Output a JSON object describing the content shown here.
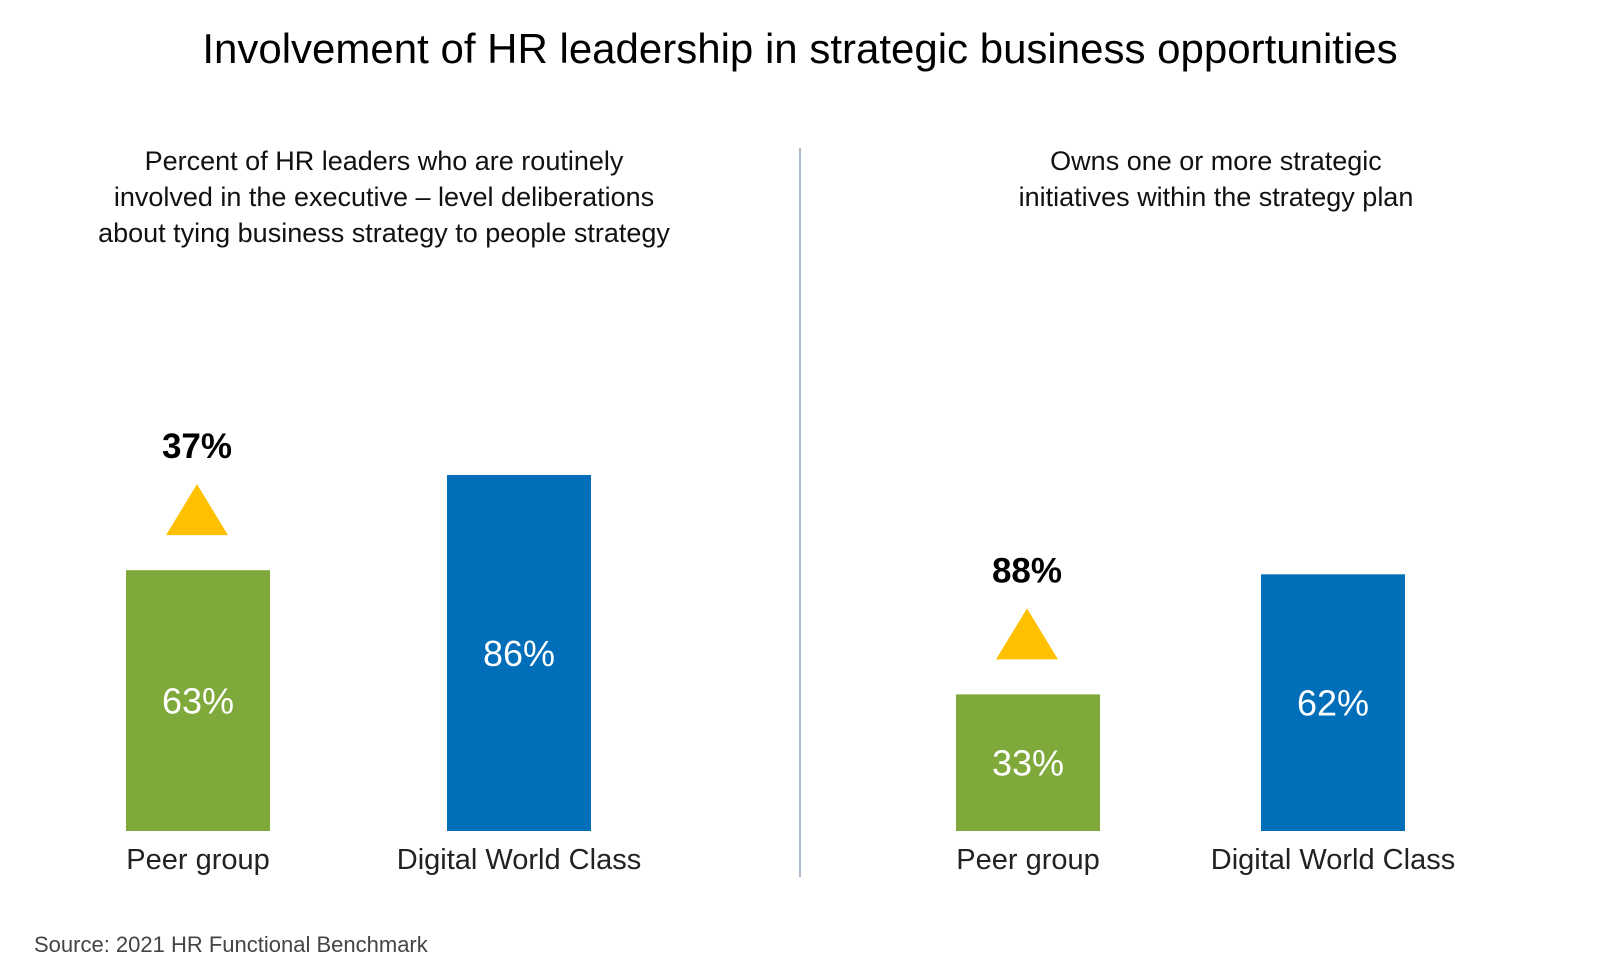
{
  "title": "Involvement of HR leadership in strategic business opportunities",
  "source": "Source: 2021 HR Functional Benchmark",
  "colors": {
    "peer": "#80A93B",
    "world_class": "#006EB8",
    "triangle": "#FFC000",
    "divider": "#5B7A99"
  },
  "chart_data": [
    {
      "type": "bar",
      "title_lines": [
        "Percent of HR leaders who are routinely",
        "involved in the executive – level deliberations",
        "about tying business strategy to people strategy"
      ],
      "categories": [
        "Peer group",
        "Digital World Class"
      ],
      "values": [
        63,
        86
      ],
      "value_labels": [
        "63%",
        "86%"
      ],
      "annotation": {
        "icon": "up-triangle-icon",
        "label": "37%"
      },
      "ylim": [
        0,
        100
      ]
    },
    {
      "type": "bar",
      "title_lines": [
        "Owns one or more strategic",
        "initiatives within the strategy plan"
      ],
      "categories": [
        "Peer group",
        "Digital World Class"
      ],
      "values": [
        33,
        62
      ],
      "value_labels": [
        "33%",
        "62%"
      ],
      "annotation": {
        "icon": "up-triangle-icon",
        "label": "88%"
      },
      "ylim": [
        0,
        100
      ]
    }
  ]
}
